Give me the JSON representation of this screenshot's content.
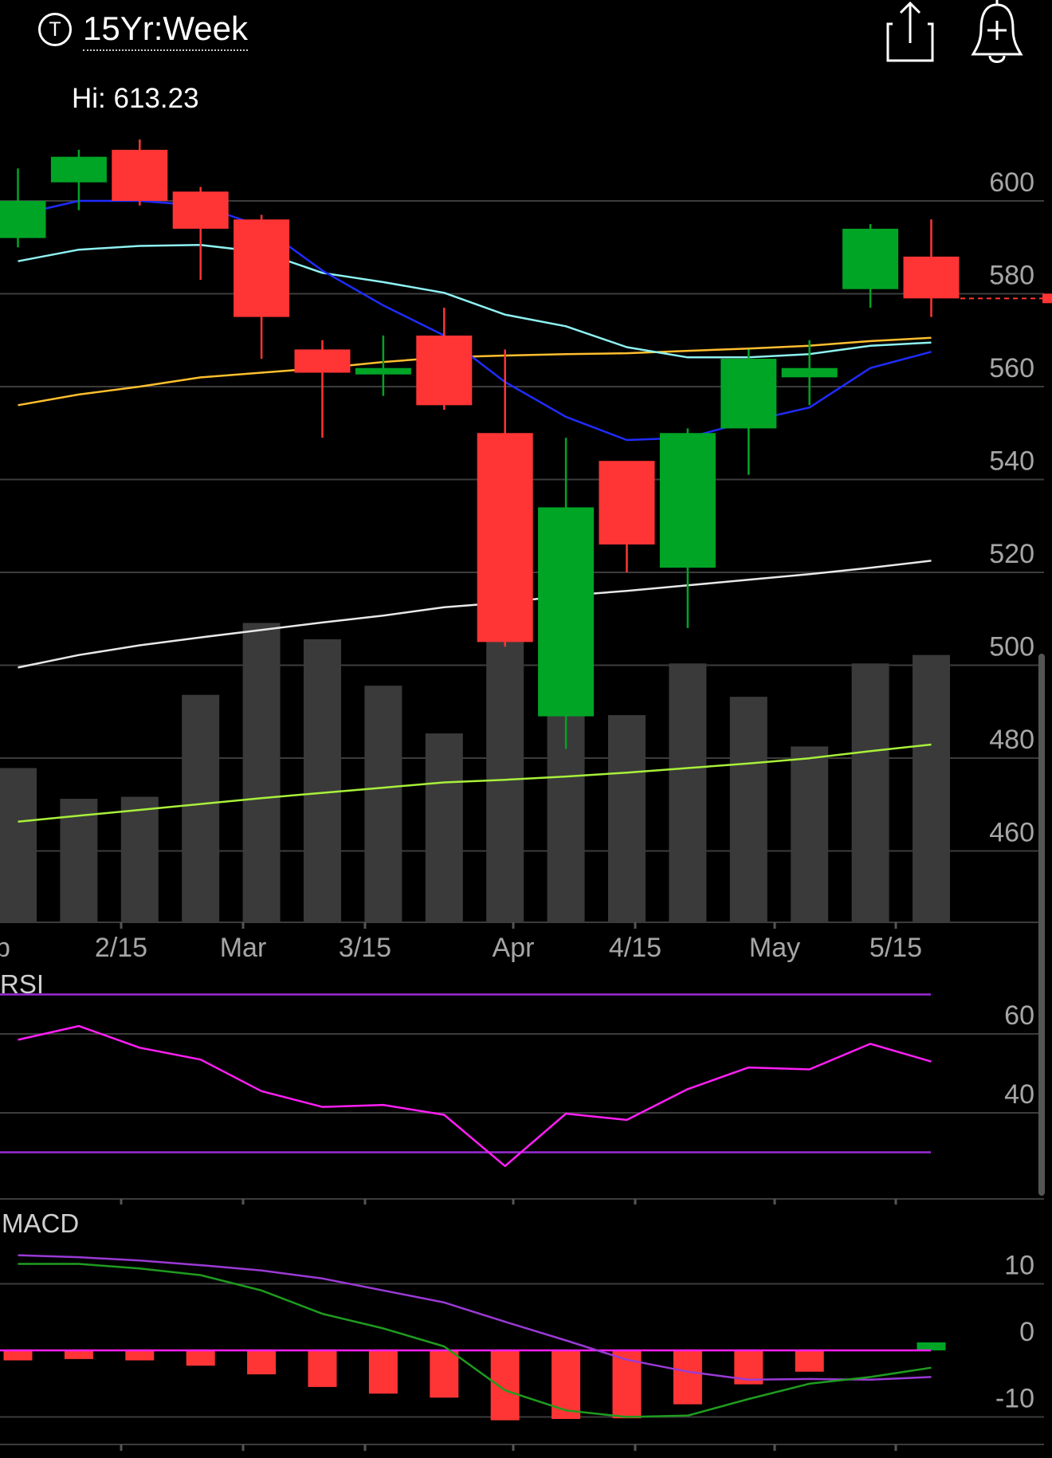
{
  "header": {
    "timeframe_icon": "T",
    "timeframe_label": "15Yr:Week",
    "share_icon": "share-icon",
    "alert_icon": "add-alert-bell-icon",
    "hi_label": "Hi: 613.23"
  },
  "colors": {
    "up": "#00a526",
    "down": "#ff3535",
    "volume": "#3a3a3a",
    "ma_blue": "#1f2cff",
    "ma_cyan": "#8ff2f2",
    "ma_orange": "#ffbf2e",
    "ma_white": "#e8e8e8",
    "volume_ma": "#a8f03a",
    "rsi": "#ff1ff5",
    "rsi_band": "#9b2bd6",
    "macd": "#1f9c1f",
    "signal": "#9b3ad6",
    "zero_line": "#ff1ff5"
  },
  "chart_data": [
    {
      "type": "candlestick",
      "title": "",
      "x_labels": [
        "eb",
        "2/15",
        "Mar",
        "3/15",
        "Apr",
        "4/15",
        "May",
        "5/15"
      ],
      "y_ticks": [
        "600",
        "580",
        "560",
        "540",
        "520",
        "500",
        "480",
        "460"
      ],
      "ylim": [
        446,
        616
      ],
      "candles": [
        {
          "open": 592,
          "high": 607,
          "low": 590,
          "close": 600
        },
        {
          "open": 604,
          "high": 611,
          "low": 598,
          "close": 609.5
        },
        {
          "open": 611,
          "high": 613.23,
          "low": 599,
          "close": 600
        },
        {
          "open": 602,
          "high": 603,
          "low": 583,
          "close": 594
        },
        {
          "open": 596,
          "high": 597,
          "low": 566,
          "close": 575
        },
        {
          "open": 568,
          "high": 570,
          "low": 549,
          "close": 563
        },
        {
          "open": 563,
          "high": 571,
          "low": 558,
          "close": 564
        },
        {
          "open": 571,
          "high": 577,
          "low": 555,
          "close": 556
        },
        {
          "open": 550,
          "high": 568,
          "low": 504,
          "close": 505
        },
        {
          "open": 489,
          "high": 549,
          "low": 482,
          "close": 534
        },
        {
          "open": 544,
          "high": 544,
          "low": 520,
          "close": 526
        },
        {
          "open": 521,
          "high": 551,
          "low": 508,
          "close": 550
        },
        {
          "open": 551,
          "high": 568,
          "low": 541,
          "close": 566
        },
        {
          "open": 562,
          "high": 570,
          "low": 556,
          "close": 564
        },
        {
          "open": 581,
          "high": 595,
          "low": 577,
          "close": 594
        },
        {
          "open": 588,
          "high": 596,
          "low": 575,
          "close": 579
        }
      ],
      "last_price": 579,
      "ma_blue": [
        597,
        600,
        600,
        599,
        594.5,
        585,
        577.5,
        571,
        561,
        553.5,
        548.5,
        549,
        552.5,
        555.5,
        564,
        567.5
      ],
      "ma_cyan": [
        587,
        589.5,
        590.3,
        590.5,
        589,
        584.5,
        582.5,
        580.2,
        575.5,
        573,
        568.5,
        566.3,
        566.3,
        567,
        568.8,
        569.5
      ],
      "ma_orange": [
        556,
        558.3,
        560,
        562,
        563,
        564,
        565.3,
        566.3,
        566.7,
        567,
        567.2,
        567.7,
        568.2,
        568.8,
        569.8,
        570.5
      ],
      "ma_white": [
        499.5,
        502.2,
        504.3,
        506,
        507.6,
        509.2,
        510.7,
        512.5,
        513.5,
        515,
        516,
        517.2,
        518.4,
        519.6,
        521,
        522.5
      ],
      "volume": [
        23.6,
        18.9,
        19.2,
        34.8,
        45.8,
        43.3,
        36.2,
        28.9,
        72,
        62,
        31.7,
        39.6,
        34.5,
        26.9,
        39.6,
        40.9
      ],
      "volume_ma": [
        15.4,
        16.3,
        17.2,
        18.1,
        19,
        19.8,
        20.6,
        21.4,
        21.8,
        22.3,
        22.9,
        23.6,
        24.3,
        25.1,
        26.2,
        27.2
      ]
    },
    {
      "type": "line",
      "title": "RSI",
      "y_ticks": [
        "60",
        "40"
      ],
      "ylim": [
        9,
        73
      ],
      "upper_band": 70,
      "lower_band": 30,
      "values": [
        58.5,
        62,
        56.5,
        53.5,
        45.5,
        41.5,
        42,
        39.5,
        26.5,
        39.8,
        38.2,
        46,
        51.5,
        51,
        57.5,
        53
      ]
    },
    {
      "type": "bar",
      "title": "MACD",
      "y_ticks": [
        "10",
        "0",
        "-10"
      ],
      "ylim": [
        -14.5,
        15
      ],
      "macd": [
        13,
        13,
        12.3,
        11.3,
        9,
        5.5,
        3.3,
        0.6,
        -6,
        -9,
        -10,
        -9.8,
        -7.3,
        -5,
        -4,
        -2.6
      ],
      "signal": [
        14.3,
        14,
        13.5,
        12.8,
        12,
        10.8,
        9,
        7.2,
        4.3,
        1.5,
        -1.4,
        -3.2,
        -4.4,
        -4.3,
        -4.4,
        -4
      ],
      "histogram": [
        -1.5,
        -1.3,
        -1.5,
        -2.3,
        -3.6,
        -5.5,
        -6.5,
        -7.1,
        -10.5,
        -10.3,
        -10.2,
        -8.1,
        -5.1,
        -3.2,
        null,
        1.2
      ]
    }
  ]
}
